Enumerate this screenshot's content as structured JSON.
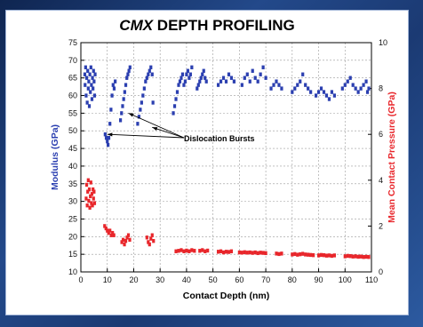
{
  "chart_data": {
    "type": "scatter",
    "title": {
      "prefix": "CMX",
      "rest": " DEPTH PROFILING"
    },
    "xlabel": "Contact Depth (nm)",
    "ylabel": "Modulus (GPa)",
    "y2label": "Mean Contact Pressure (GPa)",
    "xlim": [
      0,
      110
    ],
    "ylim": [
      10,
      75
    ],
    "y2lim": [
      0,
      10
    ],
    "xticks": [
      "0",
      "10",
      "20",
      "30",
      "40",
      "50",
      "60",
      "70",
      "80",
      "90",
      "100",
      "110"
    ],
    "yticks": [
      "10",
      "15",
      "20",
      "25",
      "30",
      "35",
      "40",
      "45",
      "50",
      "55",
      "60",
      "65",
      "70",
      "75"
    ],
    "y2ticks": [
      "0",
      "2",
      "4",
      "6",
      "8",
      "10"
    ],
    "grid": true,
    "annotation": {
      "text": "Dislocation Bursts",
      "targets": [
        [
          10,
          49
        ],
        [
          18,
          55
        ],
        [
          27,
          51
        ]
      ]
    },
    "series": [
      {
        "axis": "left",
        "color": "#2b3fb0",
        "points": [
          [
            1.5,
            66
          ],
          [
            1.6,
            63
          ],
          [
            1.8,
            68
          ],
          [
            2,
            60
          ],
          [
            2.2,
            65
          ],
          [
            2.4,
            58
          ],
          [
            2.6,
            67
          ],
          [
            2.8,
            62
          ],
          [
            3,
            64
          ],
          [
            3.2,
            57
          ],
          [
            3.4,
            66
          ],
          [
            3.6,
            61
          ],
          [
            3.8,
            68
          ],
          [
            4,
            63
          ],
          [
            4.2,
            59
          ],
          [
            4.4,
            65
          ],
          [
            4.6,
            62
          ],
          [
            4.8,
            67
          ],
          [
            5,
            64
          ],
          [
            5.2,
            60
          ],
          [
            5.4,
            66
          ],
          [
            9.2,
            49
          ],
          [
            9.6,
            48
          ],
          [
            10,
            47
          ],
          [
            10.3,
            46
          ],
          [
            10.6,
            48
          ],
          [
            11,
            52
          ],
          [
            11.4,
            56
          ],
          [
            11.8,
            60
          ],
          [
            12.2,
            63
          ],
          [
            12.6,
            62
          ],
          [
            13,
            64
          ],
          [
            15,
            53
          ],
          [
            15.4,
            55
          ],
          [
            15.8,
            57
          ],
          [
            16.2,
            59
          ],
          [
            16.6,
            61
          ],
          [
            17,
            63
          ],
          [
            17.4,
            65
          ],
          [
            17.8,
            66
          ],
          [
            18.2,
            67
          ],
          [
            18.6,
            68
          ],
          [
            21.5,
            52
          ],
          [
            22,
            54
          ],
          [
            22.5,
            56
          ],
          [
            23,
            58
          ],
          [
            23.5,
            60
          ],
          [
            24,
            62
          ],
          [
            24.5,
            64
          ],
          [
            25,
            65
          ],
          [
            25.5,
            66
          ],
          [
            26,
            67
          ],
          [
            26.5,
            68
          ],
          [
            27,
            66
          ],
          [
            27.3,
            58
          ],
          [
            35,
            55
          ],
          [
            35.5,
            57
          ],
          [
            36,
            59
          ],
          [
            36.5,
            61
          ],
          [
            37,
            63
          ],
          [
            37.5,
            64
          ],
          [
            38,
            65
          ],
          [
            38.5,
            66
          ],
          [
            39,
            63
          ],
          [
            39.5,
            64
          ],
          [
            40,
            66
          ],
          [
            40.5,
            67
          ],
          [
            41,
            65
          ],
          [
            41.5,
            66
          ],
          [
            42,
            68
          ],
          [
            44,
            62
          ],
          [
            44.5,
            63
          ],
          [
            45,
            64
          ],
          [
            45.5,
            65
          ],
          [
            46,
            66
          ],
          [
            46.5,
            67
          ],
          [
            47,
            65
          ],
          [
            47.5,
            64
          ],
          [
            52,
            63
          ],
          [
            53,
            64
          ],
          [
            54,
            65
          ],
          [
            55,
            64
          ],
          [
            56,
            66
          ],
          [
            57,
            65
          ],
          [
            58,
            64
          ],
          [
            61,
            63
          ],
          [
            62,
            65
          ],
          [
            63,
            66
          ],
          [
            64,
            64
          ],
          [
            65,
            67
          ],
          [
            66,
            65
          ],
          [
            67,
            64
          ],
          [
            68,
            66
          ],
          [
            69,
            68
          ],
          [
            70,
            65
          ],
          [
            72,
            62
          ],
          [
            73,
            63
          ],
          [
            74,
            64
          ],
          [
            75,
            63
          ],
          [
            76,
            62
          ],
          [
            80,
            61
          ],
          [
            81,
            62
          ],
          [
            82,
            63
          ],
          [
            83,
            64
          ],
          [
            84,
            66
          ],
          [
            85,
            63
          ],
          [
            86,
            62
          ],
          [
            87,
            61
          ],
          [
            89,
            60
          ],
          [
            90,
            61
          ],
          [
            91,
            62
          ],
          [
            92,
            61
          ],
          [
            93,
            60
          ],
          [
            94,
            59
          ],
          [
            95,
            61
          ],
          [
            96,
            60
          ],
          [
            99,
            62
          ],
          [
            100,
            63
          ],
          [
            101,
            64
          ],
          [
            102,
            65
          ],
          [
            103,
            63
          ],
          [
            104,
            62
          ],
          [
            105,
            61
          ],
          [
            106,
            62
          ],
          [
            107,
            63
          ],
          [
            108,
            64
          ],
          [
            108.5,
            61
          ],
          [
            109,
            62
          ]
        ]
      },
      {
        "axis": "right",
        "color": "#e8262b",
        "points": [
          [
            2,
            3.2
          ],
          [
            2.2,
            3.8
          ],
          [
            2.4,
            2.9
          ],
          [
            2.6,
            3.5
          ],
          [
            2.8,
            4.0
          ],
          [
            3,
            3.1
          ],
          [
            3.2,
            3.6
          ],
          [
            3.4,
            2.8
          ],
          [
            3.6,
            3.3
          ],
          [
            3.8,
            3.9
          ],
          [
            4,
            3.0
          ],
          [
            4.2,
            3.4
          ],
          [
            4.4,
            2.9
          ],
          [
            4.6,
            3.6
          ],
          [
            4.8,
            3.2
          ],
          [
            5,
            3.5
          ],
          [
            5.2,
            3.0
          ],
          [
            9,
            2.0
          ],
          [
            9.5,
            1.9
          ],
          [
            10,
            1.8
          ],
          [
            10.5,
            1.7
          ],
          [
            11,
            1.8
          ],
          [
            11.5,
            1.6
          ],
          [
            12,
            1.7
          ],
          [
            12.5,
            1.6
          ],
          [
            15.5,
            1.3
          ],
          [
            16,
            1.4
          ],
          [
            16.5,
            1.2
          ],
          [
            17,
            1.35
          ],
          [
            17.5,
            1.5
          ],
          [
            18,
            1.6
          ],
          [
            18.5,
            1.4
          ],
          [
            25,
            1.5
          ],
          [
            25.5,
            1.3
          ],
          [
            26,
            1.2
          ],
          [
            26.5,
            1.45
          ],
          [
            27,
            1.6
          ],
          [
            27.5,
            1.35
          ],
          [
            36,
            0.9
          ],
          [
            37,
            0.92
          ],
          [
            38,
            0.95
          ],
          [
            39,
            0.9
          ],
          [
            40,
            0.93
          ],
          [
            41,
            0.9
          ],
          [
            42,
            0.95
          ],
          [
            43,
            0.92
          ],
          [
            45,
            0.92
          ],
          [
            46,
            0.95
          ],
          [
            47,
            0.9
          ],
          [
            48,
            0.93
          ],
          [
            52,
            0.88
          ],
          [
            53,
            0.9
          ],
          [
            54,
            0.85
          ],
          [
            55,
            0.88
          ],
          [
            56,
            0.87
          ],
          [
            57,
            0.9
          ],
          [
            60,
            0.85
          ],
          [
            61,
            0.84
          ],
          [
            62,
            0.86
          ],
          [
            63,
            0.84
          ],
          [
            64,
            0.85
          ],
          [
            65,
            0.83
          ],
          [
            66,
            0.85
          ],
          [
            67,
            0.82
          ],
          [
            68,
            0.84
          ],
          [
            69,
            0.83
          ],
          [
            70,
            0.82
          ],
          [
            74,
            0.8
          ],
          [
            75,
            0.78
          ],
          [
            76,
            0.8
          ],
          [
            80,
            0.76
          ],
          [
            81,
            0.78
          ],
          [
            82,
            0.75
          ],
          [
            83,
            0.77
          ],
          [
            84,
            0.79
          ],
          [
            85,
            0.76
          ],
          [
            86,
            0.75
          ],
          [
            87,
            0.74
          ],
          [
            88,
            0.73
          ],
          [
            90,
            0.72
          ],
          [
            91,
            0.74
          ],
          [
            92,
            0.73
          ],
          [
            93,
            0.71
          ],
          [
            94,
            0.72
          ],
          [
            95,
            0.7
          ],
          [
            96,
            0.72
          ],
          [
            100,
            0.68
          ],
          [
            101,
            0.7
          ],
          [
            102,
            0.69
          ],
          [
            103,
            0.67
          ],
          [
            104,
            0.68
          ],
          [
            105,
            0.66
          ],
          [
            106,
            0.67
          ],
          [
            107,
            0.65
          ],
          [
            108,
            0.66
          ],
          [
            109,
            0.65
          ]
        ]
      }
    ]
  }
}
